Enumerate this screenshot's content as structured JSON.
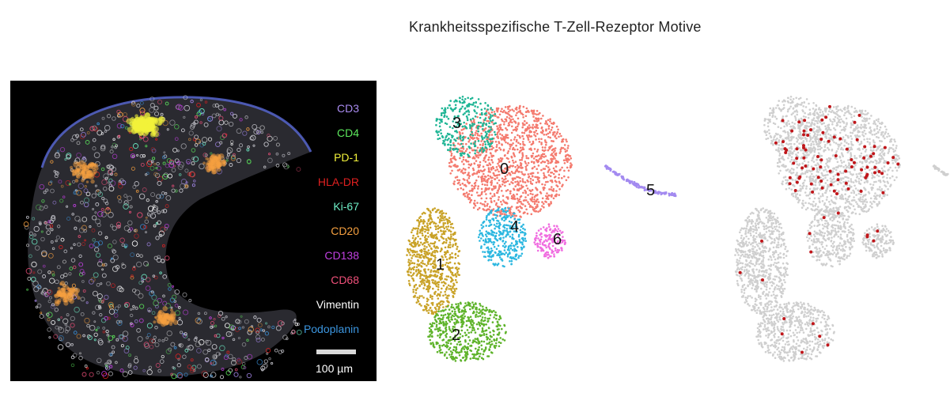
{
  "title": "Krankheitsspezifische T-Zell-Rezeptor Motive",
  "legend": [
    {
      "label": "CD3",
      "color": "#a98bf0"
    },
    {
      "label": "CD4",
      "color": "#5ce65c"
    },
    {
      "label": "PD-1",
      "color": "#f2f23a"
    },
    {
      "label": "HLA-DR",
      "color": "#e02020"
    },
    {
      "label": "Ki-67",
      "color": "#6ff0c8"
    },
    {
      "label": "CD20",
      "color": "#f5a040"
    },
    {
      "label": "CD138",
      "color": "#c040e0"
    },
    {
      "label": "CD68",
      "color": "#f0507a"
    },
    {
      "label": "Vimentin",
      "color": "#ffffff"
    },
    {
      "label": "Podoplanin",
      "color": "#3c96e0"
    }
  ],
  "scale_label": "100 µm",
  "clusters": [
    {
      "label": "0",
      "color": "#f47a6e"
    },
    {
      "label": "1",
      "color": "#c9a227"
    },
    {
      "label": "2",
      "color": "#5eb32a"
    },
    {
      "label": "3",
      "color": "#1fb595"
    },
    {
      "label": "4",
      "color": "#2cb7e0"
    },
    {
      "label": "5",
      "color": "#a38af0"
    },
    {
      "label": "6",
      "color": "#f06de0"
    }
  ],
  "motif_color": "#c0161a",
  "background_color": "#cfcfcf"
}
